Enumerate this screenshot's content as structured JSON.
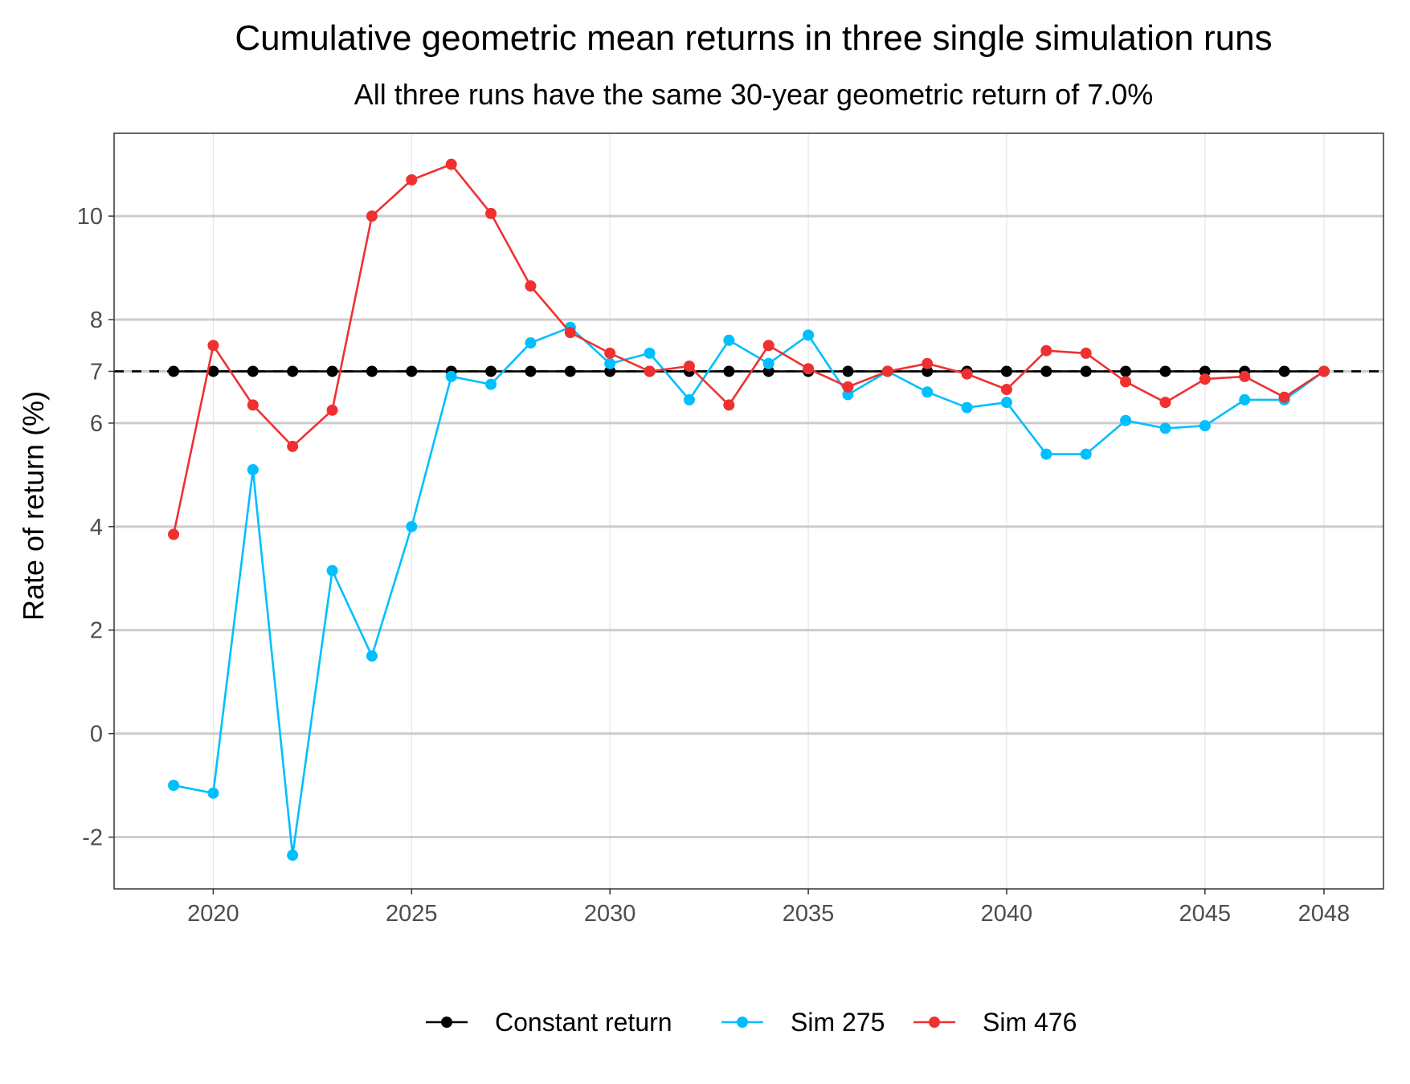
{
  "chart_data": {
    "type": "line",
    "title": "Cumulative geometric mean returns in three single simulation runs",
    "subtitle": "All three runs have the same 30-year geometric return of 7.0%",
    "xlabel": "",
    "ylabel": "Rate of return (%)",
    "xlim": [
      2017.5,
      2049.5
    ],
    "ylim": [
      -3,
      11.6
    ],
    "x_ticks": [
      2020,
      2025,
      2030,
      2035,
      2040,
      2045,
      2048
    ],
    "y_ticks": [
      -2,
      0,
      2,
      4,
      6,
      7,
      8,
      10
    ],
    "reference_line": {
      "y": 7.0,
      "style": "dashed",
      "color": "#000000"
    },
    "grid": true,
    "legend_position": "bottom",
    "x": [
      2019,
      2020,
      2021,
      2022,
      2023,
      2024,
      2025,
      2026,
      2027,
      2028,
      2029,
      2030,
      2031,
      2032,
      2033,
      2034,
      2035,
      2036,
      2037,
      2038,
      2039,
      2040,
      2041,
      2042,
      2043,
      2044,
      2045,
      2046,
      2047,
      2048
    ],
    "series": [
      {
        "name": "Constant return",
        "color": "#000000",
        "values": [
          7,
          7,
          7,
          7,
          7,
          7,
          7,
          7,
          7,
          7,
          7,
          7,
          7,
          7,
          7,
          7,
          7,
          7,
          7,
          7,
          7,
          7,
          7,
          7,
          7,
          7,
          7,
          7,
          7,
          7
        ]
      },
      {
        "name": "Sim 275",
        "color": "#00bfff",
        "values": [
          -1.0,
          -1.15,
          5.1,
          -2.35,
          3.15,
          1.5,
          4.0,
          6.9,
          6.75,
          7.55,
          7.85,
          7.15,
          7.35,
          6.45,
          7.6,
          7.15,
          7.7,
          6.55,
          7.0,
          6.6,
          6.3,
          6.4,
          5.4,
          5.4,
          6.05,
          5.9,
          5.95,
          6.45,
          6.45,
          7.0
        ]
      },
      {
        "name": "Sim 476",
        "color": "#f03030",
        "values": [
          3.85,
          7.5,
          6.35,
          5.55,
          6.25,
          10.0,
          10.7,
          11.0,
          10.05,
          8.65,
          7.75,
          7.35,
          7.0,
          7.1,
          6.35,
          7.5,
          7.05,
          6.7,
          7.0,
          7.15,
          6.95,
          6.65,
          7.4,
          7.35,
          6.8,
          6.4,
          6.85,
          6.9,
          6.5,
          7.0
        ]
      }
    ]
  }
}
